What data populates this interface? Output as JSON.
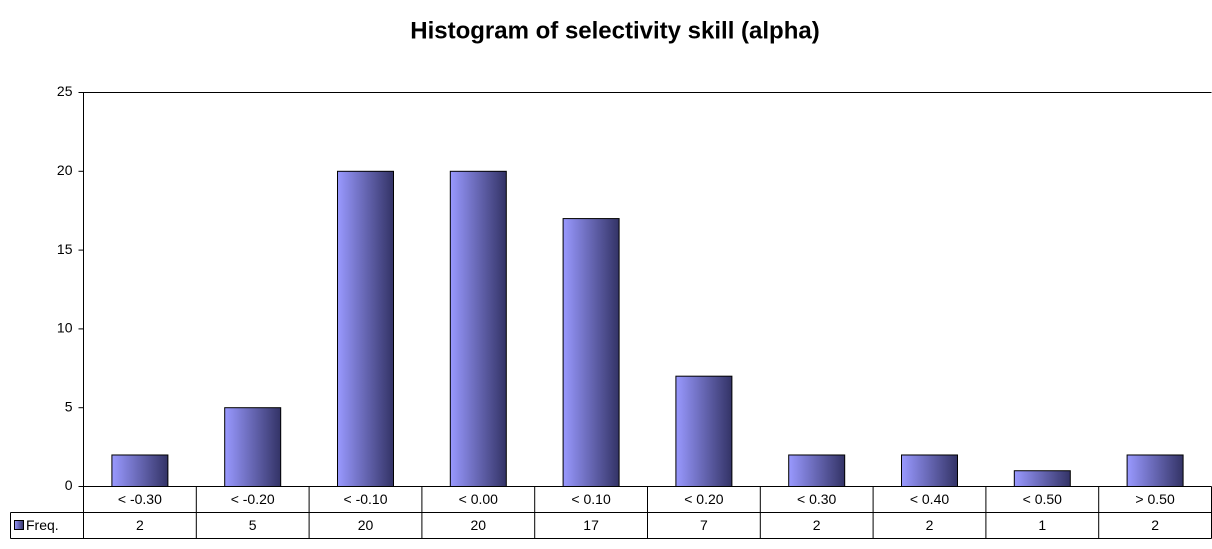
{
  "chart_data": {
    "type": "bar",
    "title": "Histogram of selectivity skill (alpha)",
    "categories": [
      "< -0.30",
      "< -0.20",
      "< -0.10",
      "< 0.00",
      "< 0.10",
      "< 0.20",
      "< 0.30",
      "< 0.40",
      "< 0.50",
      "> 0.50"
    ],
    "series": [
      {
        "name": "Freq.",
        "color": "#9999ff",
        "values": [
          2,
          5,
          20,
          20,
          17,
          7,
          2,
          2,
          1,
          2
        ]
      }
    ],
    "ylim": [
      0,
      25
    ],
    "yticks": [
      0,
      5,
      10,
      15,
      20,
      25
    ],
    "grid": false
  }
}
